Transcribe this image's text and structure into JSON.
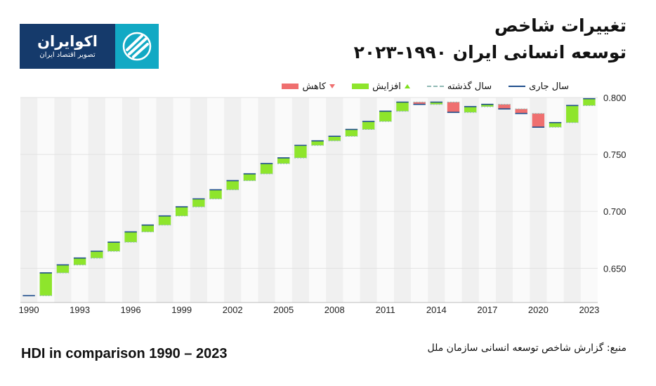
{
  "logo": {
    "name": "اکوایران",
    "tagline": "تصویر اقتصاد ایران",
    "icon": "ecoiran-mark-icon",
    "color_dark": "#153a6b",
    "color_light": "#12a9c4"
  },
  "title": {
    "line1": "تغییرات شاخص",
    "line2": "توسعه انسانی ایران ۱۹۹۰-۲۰۲۳"
  },
  "legend": {
    "current": "سال جاری",
    "previous": "سال گذشته",
    "increase": "افزایش",
    "decrease": "کاهش"
  },
  "footer": {
    "subtitle_en": "HDI in comparison 1990 – 2023",
    "source": "منبع: گزارش شاخص توسعه انسانی سازمان ملل"
  },
  "colors": {
    "increase": "#8ee52c",
    "decrease": "#ef6f6f",
    "current_line": "#1f4e8c",
    "previous_line": "#8fb9b4",
    "band": "#f0f0f0",
    "plot_bg": "#fafafa"
  },
  "chart_data": {
    "type": "bar",
    "x": [
      1990,
      1991,
      1992,
      1993,
      1994,
      1995,
      1996,
      1997,
      1998,
      1999,
      2000,
      2001,
      2002,
      2003,
      2004,
      2005,
      2006,
      2007,
      2008,
      2009,
      2010,
      2011,
      2012,
      2013,
      2014,
      2015,
      2016,
      2017,
      2018,
      2019,
      2020,
      2021,
      2022,
      2023
    ],
    "values": [
      0.626,
      0.646,
      0.653,
      0.659,
      0.665,
      0.673,
      0.682,
      0.688,
      0.696,
      0.704,
      0.711,
      0.719,
      0.727,
      0.733,
      0.742,
      0.747,
      0.758,
      0.762,
      0.766,
      0.772,
      0.779,
      0.788,
      0.796,
      0.794,
      0.796,
      0.787,
      0.792,
      0.794,
      0.79,
      0.786,
      0.774,
      0.778,
      0.793,
      0.799
    ],
    "x_tick_labels": [
      "1990",
      "1993",
      "1996",
      "1999",
      "2002",
      "2005",
      "2008",
      "2011",
      "2014",
      "2017",
      "2020",
      "2023"
    ],
    "y_tick_labels": [
      "0.650",
      "0.700",
      "0.750",
      "0.800"
    ],
    "y_ticks": [
      0.65,
      0.7,
      0.75,
      0.8
    ],
    "ylim": [
      0.62,
      0.8
    ],
    "xlabel": "",
    "ylabel": "",
    "legend_position": "top",
    "grid": true
  }
}
